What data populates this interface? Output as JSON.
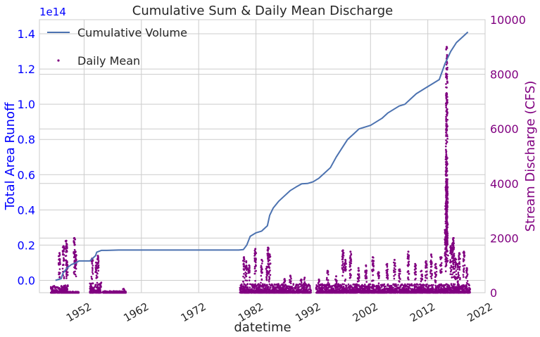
{
  "chart_data": {
    "type": "line+scatter",
    "title": "Cumulative Sum & Daily Mean Discharge",
    "xlabel": "datetime",
    "x_ticks": [
      "1952",
      "1962",
      "1972",
      "1982",
      "1992",
      "2002",
      "2012",
      "2022"
    ],
    "x_range": [
      1944.2,
      2022.0
    ],
    "grid": true,
    "legend_placement": "top-left",
    "left_axis": {
      "label": "Total Area Runoff",
      "offset_text": "1e14",
      "ticks": [
        "0.0",
        "0.2",
        "0.4",
        "0.6",
        "0.8",
        "1.0",
        "1.2",
        "1.4"
      ],
      "range": [
        -0.07,
        1.48
      ],
      "color": "#0000ff"
    },
    "right_axis": {
      "label": "Stream Discharge (CFS)",
      "ticks": [
        "0",
        "2000",
        "4000",
        "6000",
        "8000",
        "10000"
      ],
      "range": [
        0,
        10000
      ],
      "color": "#800080"
    },
    "series": [
      {
        "name": "Cumulative Volume",
        "kind": "line",
        "axis": "left",
        "color": "#4c72b0",
        "x": [
          1947.0,
          1948.0,
          1948.3,
          1949.0,
          1949.8,
          1950.6,
          1951.1,
          1951.4,
          1953.0,
          1954.0,
          1954.2,
          1955.0,
          1956.0,
          1958.0,
          1960.0,
          1965.0,
          1970.0,
          1975.0,
          1979.0,
          1979.8,
          1980.4,
          1981.0,
          1982.0,
          1983.0,
          1984.0,
          1984.4,
          1985.0,
          1986.0,
          1987.0,
          1988.0,
          1989.0,
          1990.0,
          1991.0,
          1992.0,
          1993.0,
          1994.0,
          1995.0,
          1996.0,
          1997.0,
          1998.0,
          1999.0,
          2000.0,
          2001.0,
          2002.0,
          2003.0,
          2004.0,
          2005.0,
          2006.0,
          2007.0,
          2008.0,
          2009.0,
          2010.0,
          2011.0,
          2012.0,
          2013.0,
          2014.0,
          2015.0,
          2016.0,
          2017.0,
          2018.0,
          2019.0
        ],
        "values": [
          0.0,
          0.01,
          0.04,
          0.07,
          0.09,
          0.1,
          0.11,
          0.11,
          0.11,
          0.14,
          0.16,
          0.17,
          0.17,
          0.172,
          0.172,
          0.172,
          0.172,
          0.172,
          0.172,
          0.175,
          0.2,
          0.25,
          0.27,
          0.28,
          0.31,
          0.37,
          0.41,
          0.45,
          0.48,
          0.51,
          0.53,
          0.548,
          0.55,
          0.56,
          0.58,
          0.61,
          0.64,
          0.7,
          0.75,
          0.8,
          0.83,
          0.86,
          0.87,
          0.88,
          0.9,
          0.92,
          0.95,
          0.97,
          0.99,
          1.0,
          1.03,
          1.06,
          1.08,
          1.1,
          1.12,
          1.14,
          1.23,
          1.3,
          1.35,
          1.38,
          1.41
        ]
      },
      {
        "name": "Daily Mean",
        "kind": "scatter",
        "axis": "right",
        "color": "#800080",
        "point_groups": [
          {
            "x_start": 1946.2,
            "x_end": 1949.2,
            "base_max": 280,
            "peaks": [
              [
                1948.9,
                1900
              ],
              [
                1948.4,
                1700
              ],
              [
                1947.7,
                1450
              ],
              [
                1949.0,
                1150
              ]
            ]
          },
          {
            "x_start": 1949.2,
            "x_end": 1951.1,
            "base_max": 40,
            "peaks": [
              [
                1950.3,
                2000
              ],
              [
                1950.5,
                1500
              ]
            ]
          },
          {
            "x_start": 1953.0,
            "x_end": 1955.0,
            "base_max": 380,
            "peaks": [
              [
                1954.4,
                1350
              ],
              [
                1954.1,
                1100
              ],
              [
                1953.4,
                1250
              ]
            ]
          },
          {
            "x_start": 1955.3,
            "x_end": 1959.3,
            "base_max": 60,
            "peaks": [
              [
                1958.9,
                140
              ]
            ]
          },
          {
            "x_start": 1979.2,
            "x_end": 1991.6,
            "base_max": 320,
            "peaks": [
              [
                1979.9,
                1300
              ],
              [
                1980.3,
                1150
              ],
              [
                1980.8,
                1000
              ],
              [
                1981.9,
                1600
              ],
              [
                1983.0,
                1200
              ],
              [
                1983.9,
                950
              ],
              [
                1984.1,
                1650
              ],
              [
                1984.4,
                1400
              ],
              [
                1987.0,
                500
              ],
              [
                1988.0,
                620
              ],
              [
                1989.9,
                480
              ],
              [
                1990.5,
                550
              ]
            ]
          },
          {
            "x_start": 1992.5,
            "x_end": 2019.4,
            "base_max": 320,
            "peaks": [
              [
                1993.0,
                480
              ],
              [
                1994.5,
                800
              ],
              [
                1996.0,
                600
              ],
              [
                1997.2,
                1550
              ],
              [
                1997.6,
                1200
              ],
              [
                1998.5,
                1500
              ],
              [
                1999.9,
                900
              ],
              [
                2001.2,
                1000
              ],
              [
                2002.4,
                1300
              ],
              [
                2003.4,
                750
              ],
              [
                2004.9,
                1050
              ],
              [
                2006.2,
                1200
              ],
              [
                2007.1,
                850
              ],
              [
                2008.6,
                1500
              ],
              [
                2009.8,
                1050
              ],
              [
                2010.9,
                800
              ],
              [
                2011.7,
                1150
              ],
              [
                2012.6,
                1400
              ],
              [
                2013.4,
                1050
              ],
              [
                2014.3,
                1300
              ],
              [
                2015.1,
                2300
              ],
              [
                2015.3,
                9000
              ],
              [
                2015.25,
                5000
              ],
              [
                2015.35,
                4000
              ],
              [
                2015.4,
                3700
              ],
              [
                2015.2,
                3300
              ],
              [
                2016.0,
                1700
              ],
              [
                2016.3,
                1800
              ],
              [
                2016.5,
                2000
              ],
              [
                2016.8,
                1250
              ],
              [
                2017.2,
                1050
              ],
              [
                2017.5,
                1450
              ],
              [
                2018.3,
                1500
              ],
              [
                2018.8,
                900
              ]
            ]
          }
        ]
      }
    ]
  }
}
